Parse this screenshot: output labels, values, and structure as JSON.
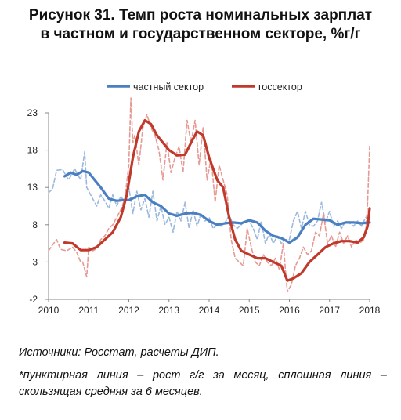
{
  "title": {
    "line1": "Рисунок 31. Темп роста номинальных зарплат",
    "line2": "в частном и государственном секторе, %г/г"
  },
  "notes": {
    "source": "Источники: Росстат, расчеты ДИП.",
    "footnote": "*пунктирная линия – рост г/г за месяц, сплошная линия – скользящая средняя за 6 месяцев."
  },
  "colors": {
    "private": "#4a7fc1",
    "private_light": "#9bb8dd",
    "public": "#c0392b",
    "public_light": "#e59a94"
  },
  "chart_data": {
    "type": "line",
    "title": "",
    "xlabel": "",
    "ylabel": "",
    "xlim": [
      2010,
      2018
    ],
    "ylim": [
      -2,
      23
    ],
    "yticks": [
      -2,
      3,
      8,
      13,
      18,
      23
    ],
    "xticks": [
      "2010",
      "2011",
      "2012",
      "2013",
      "2014",
      "2015",
      "2016",
      "2017",
      "2018"
    ],
    "legend": {
      "placement": "top",
      "entries": [
        "частный сектор",
        "госсектор"
      ]
    },
    "series": [
      {
        "name": "частный сектор",
        "style": "solid",
        "x": [
          2010.4,
          2010.55,
          2010.7,
          2010.85,
          2011.0,
          2011.15,
          2011.3,
          2011.5,
          2011.7,
          2011.85,
          2012.0,
          2012.2,
          2012.4,
          2012.6,
          2012.8,
          2013.0,
          2013.2,
          2013.4,
          2013.6,
          2013.8,
          2014.0,
          2014.2,
          2014.4,
          2014.6,
          2014.8,
          2015.0,
          2015.2,
          2015.4,
          2015.6,
          2015.8,
          2016.0,
          2016.2,
          2016.4,
          2016.6,
          2016.8,
          2017.0,
          2017.2,
          2017.4,
          2017.6,
          2017.8,
          2018.0
        ],
        "y": [
          14.5,
          15.0,
          14.7,
          15.2,
          15.0,
          14.0,
          13.0,
          11.5,
          11.2,
          11.3,
          11.3,
          11.8,
          12.0,
          11.0,
          10.5,
          9.5,
          9.2,
          9.5,
          9.6,
          9.3,
          8.5,
          8.0,
          8.2,
          8.3,
          8.2,
          8.6,
          8.3,
          7.2,
          6.5,
          6.2,
          5.6,
          6.3,
          8.0,
          8.8,
          8.7,
          8.6,
          8.0,
          8.3,
          8.3,
          8.2,
          8.3
        ]
      },
      {
        "name": "госсектор",
        "style": "solid",
        "x": [
          2010.4,
          2010.6,
          2010.8,
          2011.0,
          2011.2,
          2011.4,
          2011.6,
          2011.8,
          2011.95,
          2012.1,
          2012.25,
          2012.4,
          2012.55,
          2012.7,
          2012.85,
          2013.0,
          2013.2,
          2013.4,
          2013.55,
          2013.7,
          2013.85,
          2014.0,
          2014.2,
          2014.35,
          2014.5,
          2014.65,
          2014.8,
          2015.0,
          2015.2,
          2015.4,
          2015.6,
          2015.8,
          2015.95,
          2016.1,
          2016.3,
          2016.5,
          2016.7,
          2016.9,
          2017.1,
          2017.3,
          2017.5,
          2017.7,
          2017.85,
          2017.95,
          2018.0
        ],
        "y": [
          5.6,
          5.5,
          4.6,
          4.6,
          5.0,
          6.0,
          7.0,
          9.0,
          12.0,
          17.0,
          20.5,
          22.0,
          21.5,
          20.0,
          19.0,
          18.0,
          17.3,
          17.4,
          19.0,
          20.5,
          20.0,
          17.0,
          14.0,
          13.0,
          9.0,
          6.0,
          4.5,
          4.0,
          3.5,
          3.5,
          3.0,
          2.5,
          0.5,
          0.8,
          1.5,
          3.0,
          4.0,
          5.0,
          5.5,
          5.8,
          5.8,
          5.6,
          6.3,
          7.8,
          10.2
        ]
      },
      {
        "name": "",
        "style": "dashed",
        "x": [
          2010.0,
          2010.1,
          2010.2,
          2010.35,
          2010.5,
          2010.65,
          2010.8,
          2010.9,
          2010.95,
          2011.05,
          2011.2,
          2011.3,
          2011.4,
          2011.5,
          2011.6,
          2011.7,
          2011.8,
          2011.9,
          2012.0,
          2012.1,
          2012.2,
          2012.3,
          2012.4,
          2012.5,
          2012.6,
          2012.7,
          2012.8,
          2012.9,
          2013.0,
          2013.1,
          2013.2,
          2013.3,
          2013.4,
          2013.5,
          2013.6,
          2013.7,
          2013.8,
          2013.9,
          2014.0,
          2014.1,
          2014.2,
          2014.3,
          2014.4,
          2014.5,
          2014.6,
          2014.7,
          2014.8,
          2014.9,
          2015.0,
          2015.1,
          2015.2,
          2015.3,
          2015.4,
          2015.5,
          2015.6,
          2015.7,
          2015.8,
          2015.9,
          2016.0,
          2016.1,
          2016.2,
          2016.3,
          2016.4,
          2016.5,
          2016.6,
          2016.7,
          2016.8,
          2016.9,
          2017.0,
          2017.1,
          2017.2,
          2017.3,
          2017.4,
          2017.5,
          2017.6,
          2017.7,
          2017.8,
          2017.9,
          2018.0
        ],
        "y": [
          12.3,
          12.8,
          15.3,
          15.4,
          14.0,
          15.5,
          14.0,
          17.8,
          13.0,
          12.0,
          10.5,
          12.0,
          11.2,
          10.2,
          12.0,
          10.5,
          11.8,
          11.0,
          13.0,
          9.5,
          12.5,
          10.0,
          11.5,
          9.0,
          12.5,
          8.5,
          10.5,
          8.0,
          9.0,
          7.0,
          9.8,
          8.5,
          11.0,
          7.5,
          10.0,
          7.8,
          9.5,
          8.5,
          9.0,
          7.5,
          8.0,
          7.8,
          8.3,
          9.3,
          8.0,
          7.5,
          8.0,
          8.5,
          8.5,
          7.5,
          6.0,
          8.5,
          5.5,
          6.8,
          5.5,
          6.5,
          5.5,
          6.0,
          6.0,
          8.5,
          9.8,
          7.5,
          9.8,
          8.0,
          7.8,
          8.5,
          11.0,
          8.3,
          9.8,
          7.8,
          8.5,
          7.5,
          8.5,
          8.2,
          7.8,
          8.5,
          7.8,
          9.0,
          8.5
        ]
      },
      {
        "name": "",
        "style": "dashed",
        "x": [
          2010.0,
          2010.1,
          2010.2,
          2010.3,
          2010.45,
          2010.6,
          2010.7,
          2010.8,
          2010.85,
          2010.95,
          2011.0,
          2011.1,
          2011.2,
          2011.3,
          2011.4,
          2011.5,
          2011.6,
          2011.7,
          2011.8,
          2011.9,
          2012.0,
          2012.05,
          2012.1,
          2012.15,
          2012.25,
          2012.35,
          2012.45,
          2012.55,
          2012.65,
          2012.75,
          2012.85,
          2012.95,
          2013.05,
          2013.15,
          2013.25,
          2013.35,
          2013.45,
          2013.55,
          2013.65,
          2013.75,
          2013.85,
          2013.95,
          2014.05,
          2014.15,
          2014.25,
          2014.35,
          2014.45,
          2014.55,
          2014.65,
          2014.75,
          2014.85,
          2014.95,
          2015.05,
          2015.15,
          2015.25,
          2015.35,
          2015.45,
          2015.55,
          2015.65,
          2015.75,
          2015.85,
          2015.9,
          2015.95,
          2016.05,
          2016.15,
          2016.25,
          2016.35,
          2016.45,
          2016.55,
          2016.65,
          2016.75,
          2016.85,
          2016.95,
          2017.05,
          2017.15,
          2017.25,
          2017.35,
          2017.45,
          2017.55,
          2017.65,
          2017.75,
          2017.85,
          2017.9,
          2017.95,
          2018.0
        ],
        "y": [
          4.5,
          5.3,
          6.0,
          4.7,
          4.5,
          5.0,
          4.3,
          3.0,
          3.0,
          1.0,
          5.0,
          4.5,
          4.8,
          6.0,
          6.5,
          7.5,
          8.0,
          9.0,
          10.0,
          11.5,
          16.0,
          25.0,
          19.0,
          20.0,
          16.0,
          21.0,
          22.8,
          21.0,
          20.0,
          18.0,
          14.0,
          19.0,
          15.0,
          17.0,
          18.5,
          15.0,
          22.0,
          19.0,
          22.0,
          16.0,
          21.0,
          14.0,
          17.0,
          11.0,
          16.0,
          14.0,
          12.0,
          6.0,
          3.5,
          3.0,
          2.5,
          7.5,
          5.0,
          3.0,
          2.5,
          4.0,
          3.0,
          2.5,
          3.5,
          2.0,
          5.5,
          2.0,
          -1.0,
          0.0,
          2.5,
          3.5,
          5.0,
          4.0,
          4.5,
          7.0,
          6.5,
          9.5,
          5.5,
          6.5,
          5.0,
          7.0,
          5.5,
          6.5,
          5.0,
          6.0,
          5.5,
          6.0,
          7.0,
          11.0,
          18.5
        ]
      }
    ]
  }
}
